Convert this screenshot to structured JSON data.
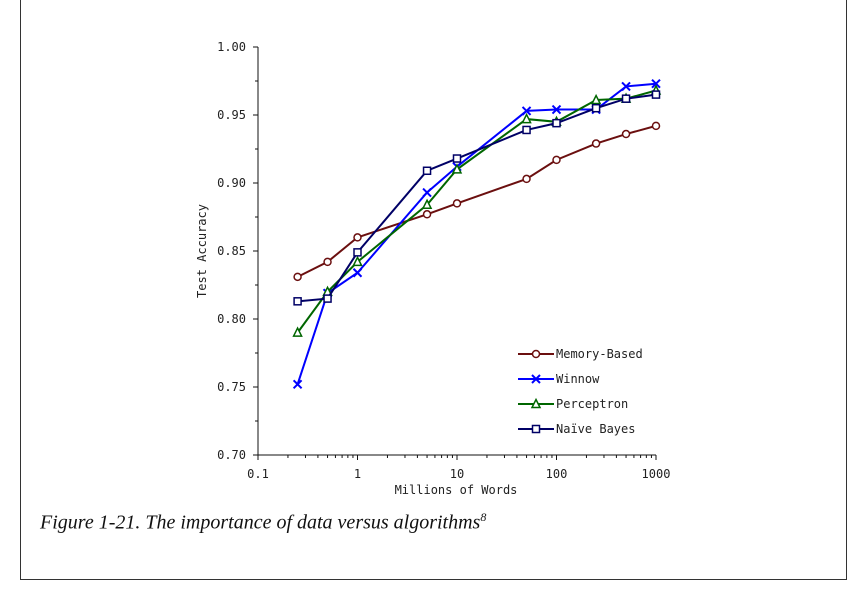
{
  "chart_data": {
    "type": "line",
    "xlabel": "Millions of Words",
    "ylabel": "Test Accuracy",
    "xscale": "log",
    "xlim": [
      0.1,
      1000
    ],
    "ylim": [
      0.7,
      1.0
    ],
    "xticks": [
      "0.1",
      "1",
      "10",
      "100",
      "1000"
    ],
    "xtick_values": [
      0.1,
      1,
      10,
      100,
      1000
    ],
    "yticks": [
      "0.70",
      "0.75",
      "0.80",
      "0.85",
      "0.90",
      "0.95",
      "1.00"
    ],
    "ytick_values": [
      0.7,
      0.75,
      0.8,
      0.85,
      0.9,
      0.95,
      1.0
    ],
    "legend_position": "lower-right",
    "x": [
      0.25,
      0.5,
      1,
      5,
      10,
      50,
      100,
      250,
      500,
      1000
    ],
    "series": [
      {
        "name": "Memory-Based",
        "marker": "circle",
        "color": "#6b0f0f",
        "values": [
          0.831,
          0.842,
          0.86,
          0.877,
          0.885,
          0.903,
          0.917,
          0.929,
          0.936,
          0.942
        ]
      },
      {
        "name": "Winnow",
        "marker": "x",
        "color": "#0000ff",
        "values": [
          0.752,
          0.819,
          0.834,
          0.893,
          0.912,
          0.953,
          0.954,
          0.954,
          0.971,
          0.973
        ]
      },
      {
        "name": "Perceptron",
        "marker": "triangle",
        "color": "#006600",
        "values": [
          0.79,
          0.82,
          0.842,
          0.884,
          0.91,
          0.947,
          0.945,
          0.961,
          0.962,
          0.968
        ]
      },
      {
        "name": "Naïve Bayes",
        "marker": "square",
        "color": "#000066",
        "values": [
          0.813,
          0.815,
          0.849,
          0.909,
          0.918,
          0.939,
          0.944,
          0.955,
          0.962,
          0.965
        ]
      }
    ]
  },
  "caption": {
    "text": "Figure 1-21. The importance of data versus algorithms",
    "footnote": "8"
  }
}
